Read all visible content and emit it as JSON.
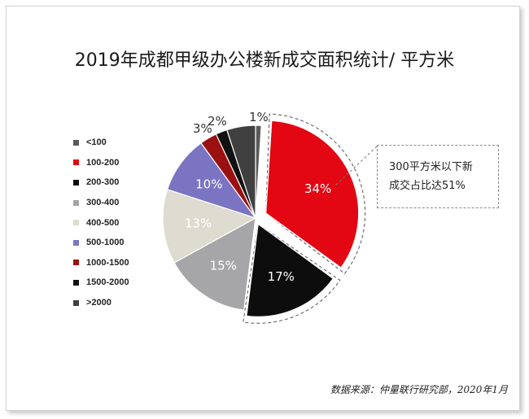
{
  "title": "2019年成都甲级办公楼新成交面积统计/ 平方米",
  "callout": {
    "line1": "300平方米以下新",
    "line2": "成交占比达51%"
  },
  "source": "数据来源：仲量联行研究部，2020年1月",
  "chart_data": {
    "type": "pie",
    "title": "2019年成都甲级办公楼新成交面积统计/ 平方米",
    "categories": [
      "<100",
      "100-200",
      "200-300",
      "300-400",
      "400-500",
      "500-1000",
      "1000-1500",
      "1500-2000",
      ">2000"
    ],
    "values": [
      1,
      34,
      17,
      15,
      13,
      10,
      3,
      2,
      5
    ],
    "labels": [
      "1%",
      "34%",
      "17%",
      "15%",
      "13%",
      "10%",
      "3%",
      "2%",
      ""
    ],
    "colors": [
      "#595959",
      "#e30613",
      "#0d0d0d",
      "#a6a6a8",
      "#dedbd0",
      "#7b74c2",
      "#9b1010",
      "#111111",
      "#404040"
    ],
    "label_colors": [
      "#333333",
      "#ffffff",
      "#ffffff",
      "#ffffff",
      "#ffffff",
      "#ffffff",
      "#333333",
      "#333333",
      "#ffffff"
    ],
    "exploded": [
      "100-200",
      "200-300"
    ],
    "legend_position": "left"
  }
}
